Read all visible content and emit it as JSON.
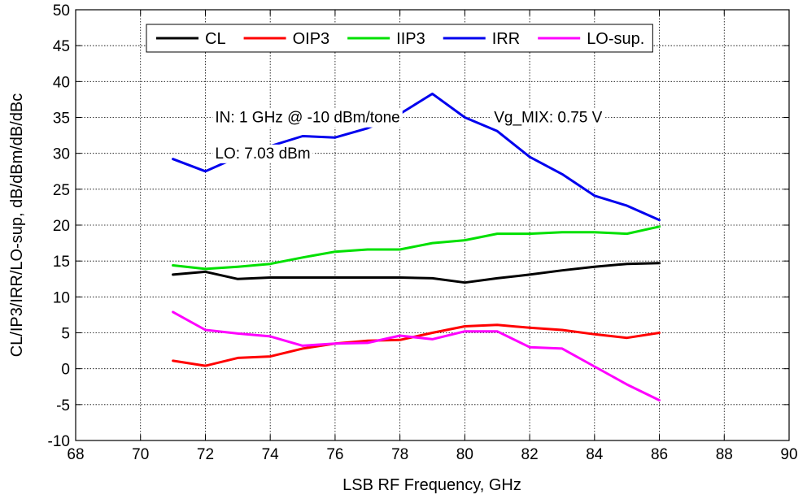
{
  "chart_data": {
    "type": "line",
    "xlabel": "LSB RF Frequency, GHz",
    "ylabel": "CL/IP3/IRR/LO-sup, dB/dBm/dB/dBc",
    "xlim": [
      68,
      90
    ],
    "ylim": [
      -10,
      50
    ],
    "xticks": [
      68,
      70,
      72,
      74,
      76,
      78,
      80,
      82,
      84,
      86,
      88,
      90
    ],
    "yticks": [
      -10,
      -5,
      0,
      5,
      10,
      15,
      20,
      25,
      30,
      35,
      40,
      45,
      50
    ],
    "grid": true,
    "legend_position": "top",
    "x": [
      71,
      72,
      73,
      74,
      75,
      76,
      77,
      78,
      79,
      80,
      81,
      82,
      83,
      84,
      85,
      86
    ],
    "series": [
      {
        "name": "CL",
        "color": "#000000",
        "values": [
          13.1,
          13.5,
          12.5,
          12.7,
          12.7,
          12.7,
          12.7,
          12.7,
          12.6,
          12.0,
          12.6,
          13.1,
          13.7,
          14.2,
          14.6,
          14.7
        ]
      },
      {
        "name": "OIP3",
        "color": "#ff0000",
        "values": [
          1.1,
          0.4,
          1.5,
          1.7,
          2.8,
          3.5,
          3.9,
          4.0,
          5.0,
          5.9,
          6.1,
          5.7,
          5.4,
          4.8,
          4.3,
          5.0
        ]
      },
      {
        "name": "IIP3",
        "color": "#00e000",
        "values": [
          14.4,
          13.9,
          14.2,
          14.6,
          15.5,
          16.3,
          16.6,
          16.6,
          17.5,
          17.9,
          18.8,
          18.8,
          19.0,
          19.0,
          18.8,
          19.8
        ]
      },
      {
        "name": "IRR",
        "color": "#0000ee",
        "values": [
          29.2,
          27.5,
          29.5,
          31.0,
          32.4,
          32.2,
          33.5,
          35.5,
          38.3,
          35.0,
          33.1,
          29.5,
          27.1,
          24.1,
          22.7,
          20.7
        ]
      },
      {
        "name": "LO-sup.",
        "color": "#ff00ff",
        "values": [
          7.9,
          5.4,
          4.9,
          4.5,
          3.2,
          3.5,
          3.6,
          4.6,
          4.1,
          5.2,
          5.2,
          3.0,
          2.8,
          0.3,
          -2.2,
          -4.4
        ]
      }
    ],
    "annotations": [
      {
        "text": "IN: 1 GHz @ -10 dBm/tone",
        "x": 72.3,
        "y": 34.3
      },
      {
        "text": "Vg_MIX: 0.75 V",
        "x": 80.9,
        "y": 34.3
      },
      {
        "text": "LO: 7.03 dBm",
        "x": 72.3,
        "y": 29.3
      }
    ]
  }
}
